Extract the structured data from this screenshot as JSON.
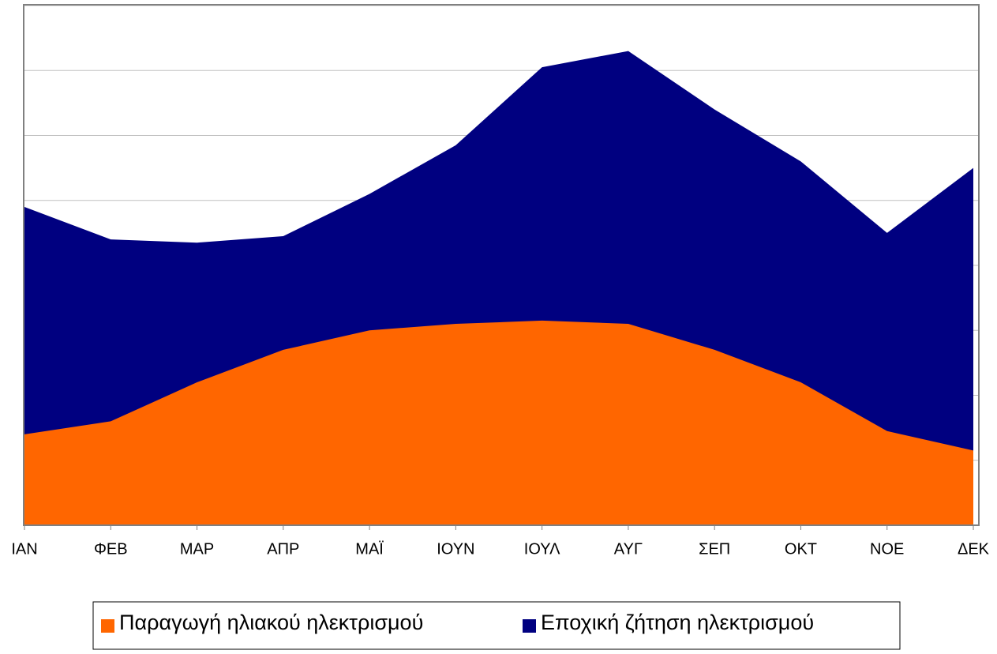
{
  "chart_data": {
    "type": "area",
    "categories": [
      "ΙΑΝ",
      "ΦΕΒ",
      "ΜΑΡ",
      "ΑΠΡ",
      "ΜΑΪ",
      "ΙΟΥΝ",
      "ΙΟΥΛ",
      "ΑΥΓ",
      "ΣΕΠ",
      "ΟΚΤ",
      "ΝΟΕ",
      "ΔΕΚ"
    ],
    "series": [
      {
        "name": "Παραγωγή ηλιακού ηλεκτρισμού",
        "color": "#ff6600",
        "values": [
          1.4,
          1.6,
          2.2,
          2.7,
          3.0,
          3.1,
          3.15,
          3.1,
          2.7,
          2.2,
          1.45,
          1.15
        ]
      },
      {
        "name": "Εποχική ζήτηση ηλεκτρισμού",
        "color": "#000080",
        "values": [
          4.9,
          4.4,
          4.35,
          4.45,
          5.1,
          5.85,
          7.05,
          7.3,
          6.4,
          5.6,
          4.5,
          5.5
        ]
      }
    ],
    "ylim": [
      0,
      8
    ],
    "yticks": [
      0,
      1,
      2,
      3,
      4,
      5,
      6,
      7,
      8
    ],
    "grid": true
  }
}
